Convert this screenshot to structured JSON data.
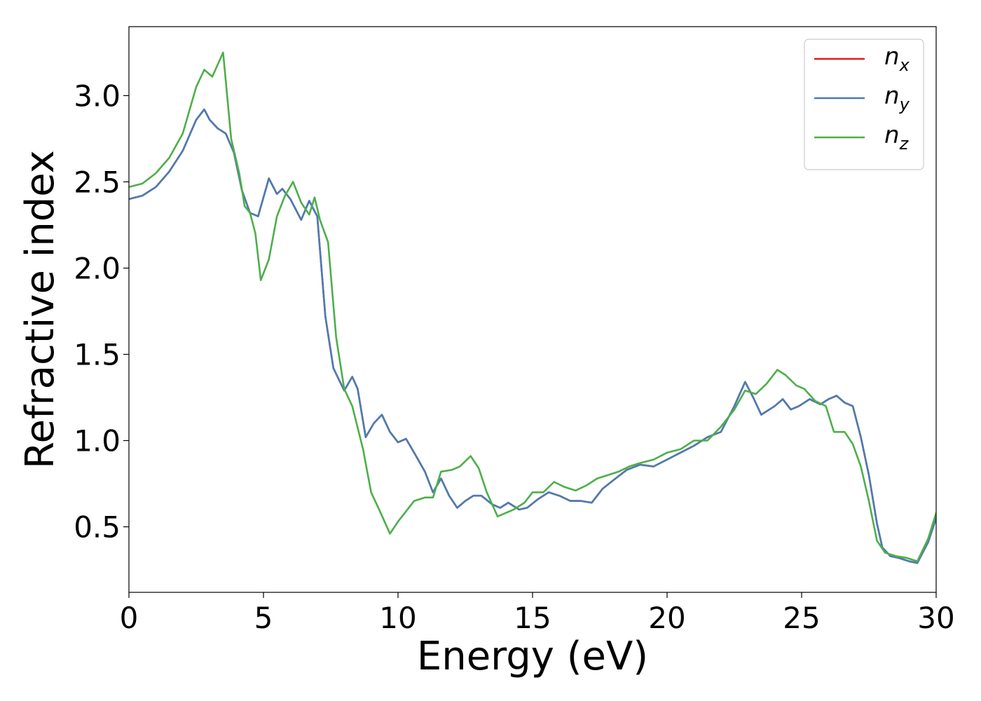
{
  "chart_data": {
    "type": "line",
    "xlabel": "Energy (eV)",
    "ylabel": "Refractive index",
    "xlim": [
      0,
      30
    ],
    "ylim": [
      0.12,
      3.4
    ],
    "xticks": [
      0,
      5,
      10,
      15,
      20,
      25,
      30
    ],
    "yticks": [
      0.5,
      1.0,
      1.5,
      2.0,
      2.5,
      3.0
    ],
    "xtick_labels": [
      "0",
      "5",
      "10",
      "15",
      "20",
      "25",
      "30"
    ],
    "ytick_labels": [
      "0.5",
      "1.0",
      "1.5",
      "2.0",
      "2.5",
      "3.0"
    ],
    "grid": false,
    "legend_position": "top-right",
    "series": [
      {
        "name": "n_x",
        "legend_main": "n",
        "legend_sub": "x",
        "color": "#e41a1c",
        "x": [
          0,
          0.5,
          1,
          1.5,
          2,
          2.5,
          2.8,
          3,
          3.3,
          3.6,
          3.9,
          4.2,
          4.5,
          4.8,
          5.2,
          5.5,
          5.7,
          6,
          6.4,
          6.7,
          7,
          7.3,
          7.6,
          8,
          8.3,
          8.5,
          8.8,
          9.1,
          9.4,
          9.7,
          10,
          10.3,
          10.6,
          11,
          11.3,
          11.6,
          11.9,
          12.2,
          12.5,
          12.8,
          13.1,
          13.5,
          13.8,
          14.1,
          14.5,
          14.8,
          15.2,
          15.6,
          16,
          16.4,
          16.8,
          17.2,
          17.6,
          18,
          18.5,
          19,
          19.5,
          20,
          20.5,
          21,
          21.5,
          22,
          22.5,
          22.9,
          23.2,
          23.5,
          24,
          24.3,
          24.6,
          24.9,
          25.3,
          25.7,
          26,
          26.3,
          26.6,
          26.9,
          27.2,
          27.5,
          27.8,
          28,
          28.3,
          28.6,
          29,
          29.3,
          29.7,
          30
        ],
        "y": [
          2.4,
          2.42,
          2.47,
          2.56,
          2.68,
          2.86,
          2.92,
          2.86,
          2.81,
          2.78,
          2.67,
          2.45,
          2.32,
          2.3,
          2.52,
          2.43,
          2.46,
          2.4,
          2.28,
          2.39,
          2.3,
          1.72,
          1.42,
          1.29,
          1.37,
          1.3,
          1.02,
          1.1,
          1.15,
          1.05,
          0.99,
          1.01,
          0.93,
          0.82,
          0.7,
          0.78,
          0.68,
          0.61,
          0.65,
          0.68,
          0.68,
          0.63,
          0.61,
          0.64,
          0.6,
          0.61,
          0.66,
          0.7,
          0.68,
          0.65,
          0.65,
          0.64,
          0.72,
          0.77,
          0.83,
          0.86,
          0.85,
          0.89,
          0.93,
          0.97,
          1.02,
          1.05,
          1.2,
          1.34,
          1.25,
          1.15,
          1.2,
          1.24,
          1.18,
          1.2,
          1.24,
          1.21,
          1.24,
          1.26,
          1.22,
          1.2,
          1.02,
          0.8,
          0.52,
          0.38,
          0.33,
          0.32,
          0.3,
          0.29,
          0.41,
          0.55
        ]
      },
      {
        "name": "n_y",
        "legend_main": "n",
        "legend_sub": "y",
        "color": "#4a7db3",
        "x": [
          0,
          0.5,
          1,
          1.5,
          2,
          2.5,
          2.8,
          3,
          3.3,
          3.6,
          3.9,
          4.2,
          4.5,
          4.8,
          5.2,
          5.5,
          5.7,
          6,
          6.4,
          6.7,
          7,
          7.3,
          7.6,
          8,
          8.3,
          8.5,
          8.8,
          9.1,
          9.4,
          9.7,
          10,
          10.3,
          10.6,
          11,
          11.3,
          11.6,
          11.9,
          12.2,
          12.5,
          12.8,
          13.1,
          13.5,
          13.8,
          14.1,
          14.5,
          14.8,
          15.2,
          15.6,
          16,
          16.4,
          16.8,
          17.2,
          17.6,
          18,
          18.5,
          19,
          19.5,
          20,
          20.5,
          21,
          21.5,
          22,
          22.5,
          22.9,
          23.2,
          23.5,
          24,
          24.3,
          24.6,
          24.9,
          25.3,
          25.7,
          26,
          26.3,
          26.6,
          26.9,
          27.2,
          27.5,
          27.8,
          28,
          28.3,
          28.6,
          29,
          29.3,
          29.7,
          30
        ],
        "y": [
          2.4,
          2.42,
          2.47,
          2.56,
          2.68,
          2.86,
          2.92,
          2.86,
          2.81,
          2.78,
          2.67,
          2.45,
          2.32,
          2.3,
          2.52,
          2.43,
          2.46,
          2.4,
          2.28,
          2.39,
          2.3,
          1.72,
          1.42,
          1.29,
          1.37,
          1.3,
          1.02,
          1.1,
          1.15,
          1.05,
          0.99,
          1.01,
          0.93,
          0.82,
          0.7,
          0.78,
          0.68,
          0.61,
          0.65,
          0.68,
          0.68,
          0.63,
          0.61,
          0.64,
          0.6,
          0.61,
          0.66,
          0.7,
          0.68,
          0.65,
          0.65,
          0.64,
          0.72,
          0.77,
          0.83,
          0.86,
          0.85,
          0.89,
          0.93,
          0.97,
          1.02,
          1.05,
          1.2,
          1.34,
          1.25,
          1.15,
          1.2,
          1.24,
          1.18,
          1.2,
          1.24,
          1.21,
          1.24,
          1.26,
          1.22,
          1.2,
          1.02,
          0.8,
          0.52,
          0.38,
          0.33,
          0.32,
          0.3,
          0.29,
          0.41,
          0.55
        ]
      },
      {
        "name": "n_z",
        "legend_main": "n",
        "legend_sub": "z",
        "color": "#4daf4a",
        "x": [
          0,
          0.5,
          1,
          1.5,
          2,
          2.5,
          2.8,
          3.1,
          3.5,
          3.8,
          4.1,
          4.3,
          4.5,
          4.7,
          4.9,
          5.2,
          5.5,
          5.8,
          6.1,
          6.4,
          6.7,
          6.9,
          7.1,
          7.4,
          7.7,
          8,
          8.3,
          8.7,
          9,
          9.3,
          9.7,
          10,
          10.3,
          10.6,
          11,
          11.3,
          11.6,
          12,
          12.3,
          12.7,
          13,
          13.3,
          13.7,
          14,
          14.3,
          14.7,
          15,
          15.4,
          15.8,
          16.2,
          16.6,
          17,
          17.4,
          17.8,
          18.2,
          18.6,
          19,
          19.5,
          20,
          20.5,
          21,
          21.5,
          22,
          22.5,
          22.9,
          23.3,
          23.7,
          24.1,
          24.4,
          24.8,
          25.1,
          25.5,
          25.9,
          26.2,
          26.6,
          26.9,
          27.2,
          27.5,
          27.8,
          28.1,
          28.5,
          28.9,
          29.3,
          29.7,
          30
        ],
        "y": [
          2.47,
          2.49,
          2.55,
          2.64,
          2.78,
          3.05,
          3.15,
          3.11,
          3.25,
          2.75,
          2.55,
          2.36,
          2.32,
          2.2,
          1.93,
          2.05,
          2.3,
          2.42,
          2.5,
          2.38,
          2.31,
          2.41,
          2.28,
          2.15,
          1.6,
          1.3,
          1.2,
          0.95,
          0.7,
          0.6,
          0.46,
          0.53,
          0.59,
          0.65,
          0.67,
          0.67,
          0.82,
          0.83,
          0.85,
          0.91,
          0.84,
          0.7,
          0.56,
          0.58,
          0.6,
          0.64,
          0.7,
          0.7,
          0.76,
          0.73,
          0.71,
          0.74,
          0.78,
          0.8,
          0.82,
          0.85,
          0.87,
          0.89,
          0.93,
          0.95,
          1.0,
          1.0,
          1.08,
          1.18,
          1.29,
          1.27,
          1.33,
          1.41,
          1.38,
          1.32,
          1.3,
          1.23,
          1.2,
          1.05,
          1.05,
          0.98,
          0.85,
          0.65,
          0.42,
          0.35,
          0.33,
          0.32,
          0.3,
          0.43,
          0.58
        ]
      }
    ]
  }
}
